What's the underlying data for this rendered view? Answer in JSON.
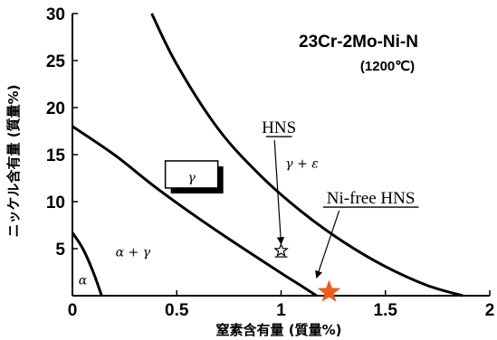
{
  "chart_data": {
    "type": "line",
    "title": "23Cr-2Mo-Ni-N",
    "subtitle": "(1200℃)",
    "xlabel": "窒素含有量 (質量%)",
    "ylabel": "ニッケル含有量 (質量%)",
    "xlim": [
      0,
      2
    ],
    "ylim": [
      0,
      30
    ],
    "x_ticks": [
      0,
      0.5,
      1,
      1.5,
      2
    ],
    "x_tick_labels": [
      "0",
      "0.5",
      "1",
      "1.5",
      "2"
    ],
    "y_ticks": [
      5,
      10,
      15,
      20,
      25,
      30
    ],
    "y_tick_labels": [
      "5",
      "10",
      "15",
      "20",
      "25",
      "30"
    ],
    "grid": false,
    "series": [
      {
        "x": [
          0.0,
          0.05,
          0.1,
          0.14
        ],
        "y": [
          6.7,
          5.0,
          2.5,
          0.0
        ]
      },
      {
        "x": [
          0.0,
          0.2,
          0.4,
          0.6,
          0.8,
          1.0,
          1.1,
          1.17
        ],
        "y": [
          18.0,
          15.0,
          11.5,
          8.3,
          5.3,
          2.4,
          1.0,
          0.0
        ]
      },
      {
        "x": [
          0.38,
          0.5,
          0.7,
          0.9,
          1.1,
          1.3,
          1.5,
          1.7,
          1.87
        ],
        "y": [
          30.0,
          24.6,
          17.7,
          12.8,
          8.9,
          5.7,
          3.1,
          1.1,
          0.0
        ]
      }
    ],
    "phase_labels": [
      {
        "text": "α",
        "x": 0.05,
        "y": 1.2
      },
      {
        "text": "α + γ",
        "x": 0.29,
        "y": 4.2
      },
      {
        "text": "γ",
        "x": 0.48,
        "y": 12.7
      },
      {
        "text": "γ + ε",
        "x": 1.1,
        "y": 13.6
      }
    ],
    "points": [
      {
        "label": "HNS",
        "x": 1.0,
        "y": 4.8,
        "marker": "hollow-star",
        "color": "#000000"
      },
      {
        "label": "Ni-free HNS",
        "x": 1.23,
        "y": 0.2,
        "marker": "filled-star",
        "color": "#f05a1a"
      }
    ],
    "annotations": [
      {
        "text": "HNS",
        "x": 0.99,
        "y": 17.3,
        "arrow_to": [
          1.0,
          5.5
        ]
      },
      {
        "text": "Ni-free HNS",
        "x": 1.43,
        "y": 9.8,
        "arrow_to": [
          1.17,
          1.9
        ]
      }
    ]
  }
}
